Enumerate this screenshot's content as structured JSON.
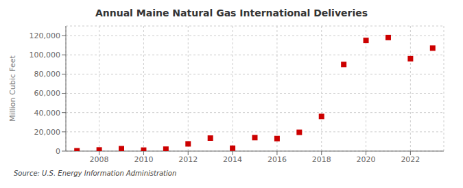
{
  "chart_data": {
    "type": "scatter",
    "title": "Annual Maine Natural Gas International Deliveries",
    "ylabel": "Million Cubic Feet",
    "annotations": [
      "Source: U.S. Energy Information Administration"
    ],
    "x": [
      2007,
      2008,
      2009,
      2010,
      2011,
      2012,
      2013,
      2014,
      2015,
      2016,
      2017,
      2018,
      2019,
      2020,
      2021,
      2022,
      2023
    ],
    "values": [
      300,
      1200,
      2500,
      1000,
      2000,
      7500,
      13500,
      3000,
      14000,
      13000,
      19500,
      36000,
      90000,
      115000,
      118000,
      96000,
      107000
    ],
    "color": "#cc0000",
    "marker": "square",
    "xlim": [
      2006.5,
      2023.5
    ],
    "xticks": [
      2008,
      2010,
      2012,
      2014,
      2016,
      2018,
      2020,
      2022
    ],
    "ylim": [
      0,
      130000
    ],
    "yticks": [
      0,
      {
        "value": 20000,
        "label": "20,000"
      },
      {
        "value": 40000,
        "label": "40,000"
      },
      {
        "value": 60000,
        "label": "60,000"
      },
      {
        "value": 80000,
        "label": "80,000"
      },
      {
        "value": 100000,
        "label": "100,000"
      },
      {
        "value": 120000,
        "label": "120,000"
      }
    ],
    "grid": true
  }
}
